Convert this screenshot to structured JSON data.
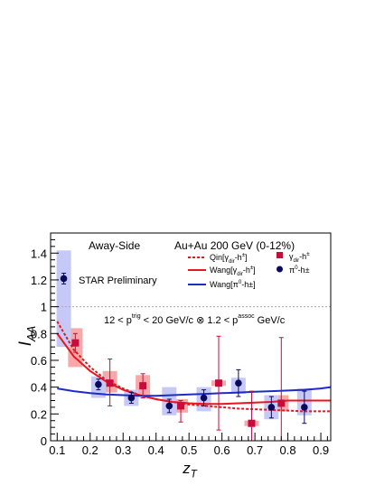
{
  "chart_data": {
    "type": "scatter",
    "title": "",
    "xlabel": "z_T",
    "ylabel": "I_AA",
    "xlim": [
      0.08,
      0.93
    ],
    "ylim": [
      0,
      1.55
    ],
    "x_ticks": [
      "0.1",
      "0.2",
      "0.3",
      "0.4",
      "0.5",
      "0.6",
      "0.7",
      "0.8",
      "0.9"
    ],
    "y_ticks": [
      "0",
      "0.2",
      "0.4",
      "0.6",
      "0.8",
      "1",
      "1.2",
      "1.4"
    ],
    "reference_line": 1,
    "annotations": {
      "away_side": "Away-Side",
      "system": "Au+Au 200 GeV (0-12%)",
      "preliminary": "STAR Preliminary",
      "trigger_prefix": "12 < p",
      "trigger_sup": "trig",
      "trigger_mid": " < 20 GeV/c ⊗ 1.2 < p",
      "assoc_sup": "assoc",
      "trigger_suffix": " GeV/c"
    },
    "legend": {
      "placement": "top-right",
      "items": [
        {
          "label": "Qin[γ",
          "sub": "dir",
          "tail": "-h",
          "sup": "±",
          "end": "]",
          "style": "dotted",
          "color": "#e8161f"
        },
        {
          "label": "Wang[γ",
          "sub": "dir",
          "tail": "-h",
          "sup": "±",
          "end": "]",
          "style": "solid",
          "color": "#e8161f"
        },
        {
          "label": "Wang[π",
          "sub": "",
          "tail": "",
          "sup": "0",
          "end": "-h±]",
          "style": "solid",
          "color": "#1d2bc9"
        },
        {
          "label": "γ",
          "sub": "dir",
          "tail": "-h",
          "sup": "±",
          "end": "",
          "style": "marker",
          "marker": "square",
          "color": "#c80a3c"
        },
        {
          "label": "π",
          "sub": "",
          "tail": "",
          "sup": "0",
          "end": "-h±",
          "style": "marker",
          "marker": "circle",
          "color": "#0a0a5c"
        }
      ]
    },
    "series": [
      {
        "name": "γdir-h±",
        "marker": "square",
        "color": "#c80a3c",
        "box_color": "#f7a9a9",
        "points": [
          {
            "x": 0.155,
            "y": 0.73,
            "stat_lo": 0.66,
            "stat_hi": 0.8,
            "sys_lo": 0.55,
            "sys_hi": 0.84
          },
          {
            "x": 0.26,
            "y": 0.43,
            "stat_lo": 0.26,
            "stat_hi": 0.61,
            "sys_lo": 0.36,
            "sys_hi": 0.52
          },
          {
            "x": 0.36,
            "y": 0.41,
            "stat_lo": 0.32,
            "stat_hi": 0.5,
            "sys_lo": 0.34,
            "sys_hi": 0.49
          },
          {
            "x": 0.475,
            "y": 0.26,
            "stat_lo": 0.14,
            "stat_hi": 0.3,
            "sys_lo": 0.21,
            "sys_hi": 0.31
          },
          {
            "x": 0.59,
            "y": 0.43,
            "stat_lo": 0.08,
            "stat_hi": 0.78,
            "sys_lo": 0.41,
            "sys_hi": 0.45
          },
          {
            "x": 0.69,
            "y": 0.13,
            "stat_lo": 0.0,
            "stat_hi": 0.37,
            "sys_lo": 0.11,
            "sys_hi": 0.15
          },
          {
            "x": 0.78,
            "y": 0.28,
            "stat_lo": 0.0,
            "stat_hi": 0.77,
            "sys_lo": 0.22,
            "sys_hi": 0.34
          }
        ]
      },
      {
        "name": "π0-h±",
        "marker": "circle",
        "color": "#0a0a5c",
        "box_color": "#c6c9f7",
        "points": [
          {
            "x": 0.12,
            "y": 1.21,
            "stat_lo": 1.17,
            "stat_hi": 1.25,
            "sys_lo": 0.7,
            "sys_hi": 1.42
          },
          {
            "x": 0.225,
            "y": 0.42,
            "stat_lo": 0.38,
            "stat_hi": 0.46,
            "sys_lo": 0.32,
            "sys_hi": 0.48
          },
          {
            "x": 0.325,
            "y": 0.32,
            "stat_lo": 0.28,
            "stat_hi": 0.36,
            "sys_lo": 0.26,
            "sys_hi": 0.38
          },
          {
            "x": 0.44,
            "y": 0.26,
            "stat_lo": 0.21,
            "stat_hi": 0.31,
            "sys_lo": 0.19,
            "sys_hi": 0.4
          },
          {
            "x": 0.545,
            "y": 0.32,
            "stat_lo": 0.26,
            "stat_hi": 0.38,
            "sys_lo": 0.22,
            "sys_hi": 0.4
          },
          {
            "x": 0.65,
            "y": 0.43,
            "stat_lo": 0.33,
            "stat_hi": 0.53,
            "sys_lo": 0.35,
            "sys_hi": 0.47
          },
          {
            "x": 0.75,
            "y": 0.25,
            "stat_lo": 0.17,
            "stat_hi": 0.33,
            "sys_lo": 0.16,
            "sys_hi": 0.34
          },
          {
            "x": 0.85,
            "y": 0.25,
            "stat_lo": 0.13,
            "stat_hi": 0.37,
            "sys_lo": 0.19,
            "sys_hi": 0.39
          }
        ]
      }
    ],
    "curves": [
      {
        "name": "Qin[γdir-h±]",
        "style": "dotted",
        "color": "#e8161f",
        "x": [
          0.1,
          0.15,
          0.2,
          0.25,
          0.3,
          0.35,
          0.4,
          0.45,
          0.5,
          0.55,
          0.6,
          0.65,
          0.7,
          0.75,
          0.8,
          0.85,
          0.9,
          0.93
        ],
        "y": [
          0.89,
          0.68,
          0.55,
          0.45,
          0.39,
          0.34,
          0.31,
          0.29,
          0.27,
          0.26,
          0.25,
          0.24,
          0.235,
          0.23,
          0.225,
          0.22,
          0.22,
          0.22
        ]
      },
      {
        "name": "Wang[γdir-h±]",
        "style": "solid",
        "color": "#e8161f",
        "x": [
          0.1,
          0.15,
          0.2,
          0.25,
          0.3,
          0.35,
          0.4,
          0.45,
          0.5,
          0.55,
          0.6,
          0.65,
          0.7,
          0.75,
          0.8,
          0.85,
          0.9,
          0.93
        ],
        "y": [
          0.8,
          0.63,
          0.52,
          0.44,
          0.38,
          0.34,
          0.31,
          0.29,
          0.28,
          0.275,
          0.275,
          0.28,
          0.285,
          0.29,
          0.3,
          0.3,
          0.3,
          0.3
        ]
      },
      {
        "name": "Wang[π0-h±]",
        "style": "solid",
        "color": "#1d2bc9",
        "x": [
          0.1,
          0.15,
          0.2,
          0.25,
          0.3,
          0.35,
          0.4,
          0.45,
          0.5,
          0.55,
          0.6,
          0.65,
          0.7,
          0.75,
          0.8,
          0.85,
          0.9,
          0.93
        ],
        "y": [
          0.39,
          0.37,
          0.355,
          0.345,
          0.34,
          0.335,
          0.335,
          0.34,
          0.345,
          0.35,
          0.355,
          0.36,
          0.365,
          0.37,
          0.375,
          0.38,
          0.39,
          0.4
        ]
      }
    ]
  }
}
